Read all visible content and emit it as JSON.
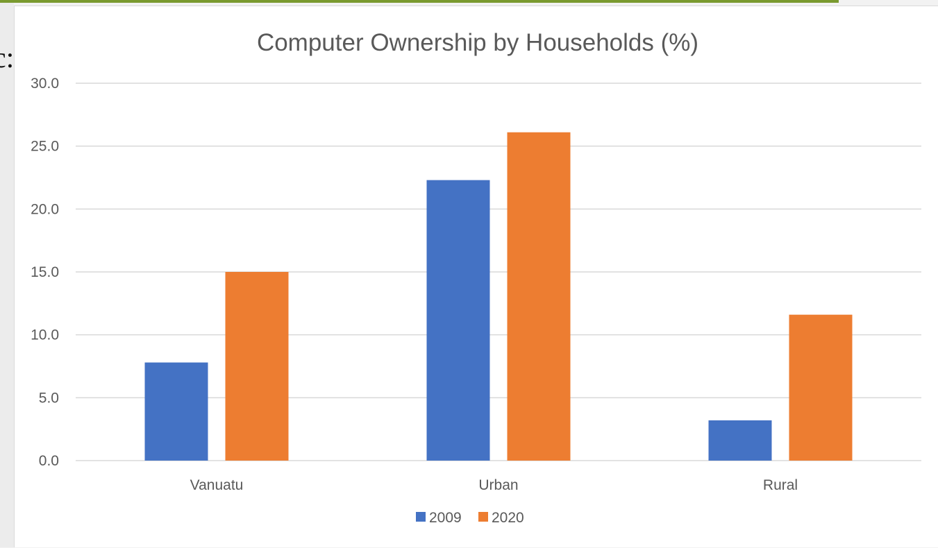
{
  "background_fragment": {
    "text": "c:"
  },
  "chart_data": {
    "type": "bar",
    "title": "Computer Ownership by Households (%)",
    "categories": [
      "Vanuatu",
      "Urban",
      "Rural"
    ],
    "series": [
      {
        "name": "2009",
        "values": [
          7.8,
          22.3,
          3.2
        ],
        "color": "#4472c4"
      },
      {
        "name": "2020",
        "values": [
          15.0,
          26.1,
          11.6
        ],
        "color": "#ed7d31"
      }
    ],
    "ylim": [
      0,
      30
    ],
    "yticks": [
      "0.0",
      "5.0",
      "10.0",
      "15.0",
      "20.0",
      "25.0",
      "30.0"
    ],
    "xlabel": "",
    "ylabel": "",
    "grid": true,
    "legend_position": "bottom"
  }
}
